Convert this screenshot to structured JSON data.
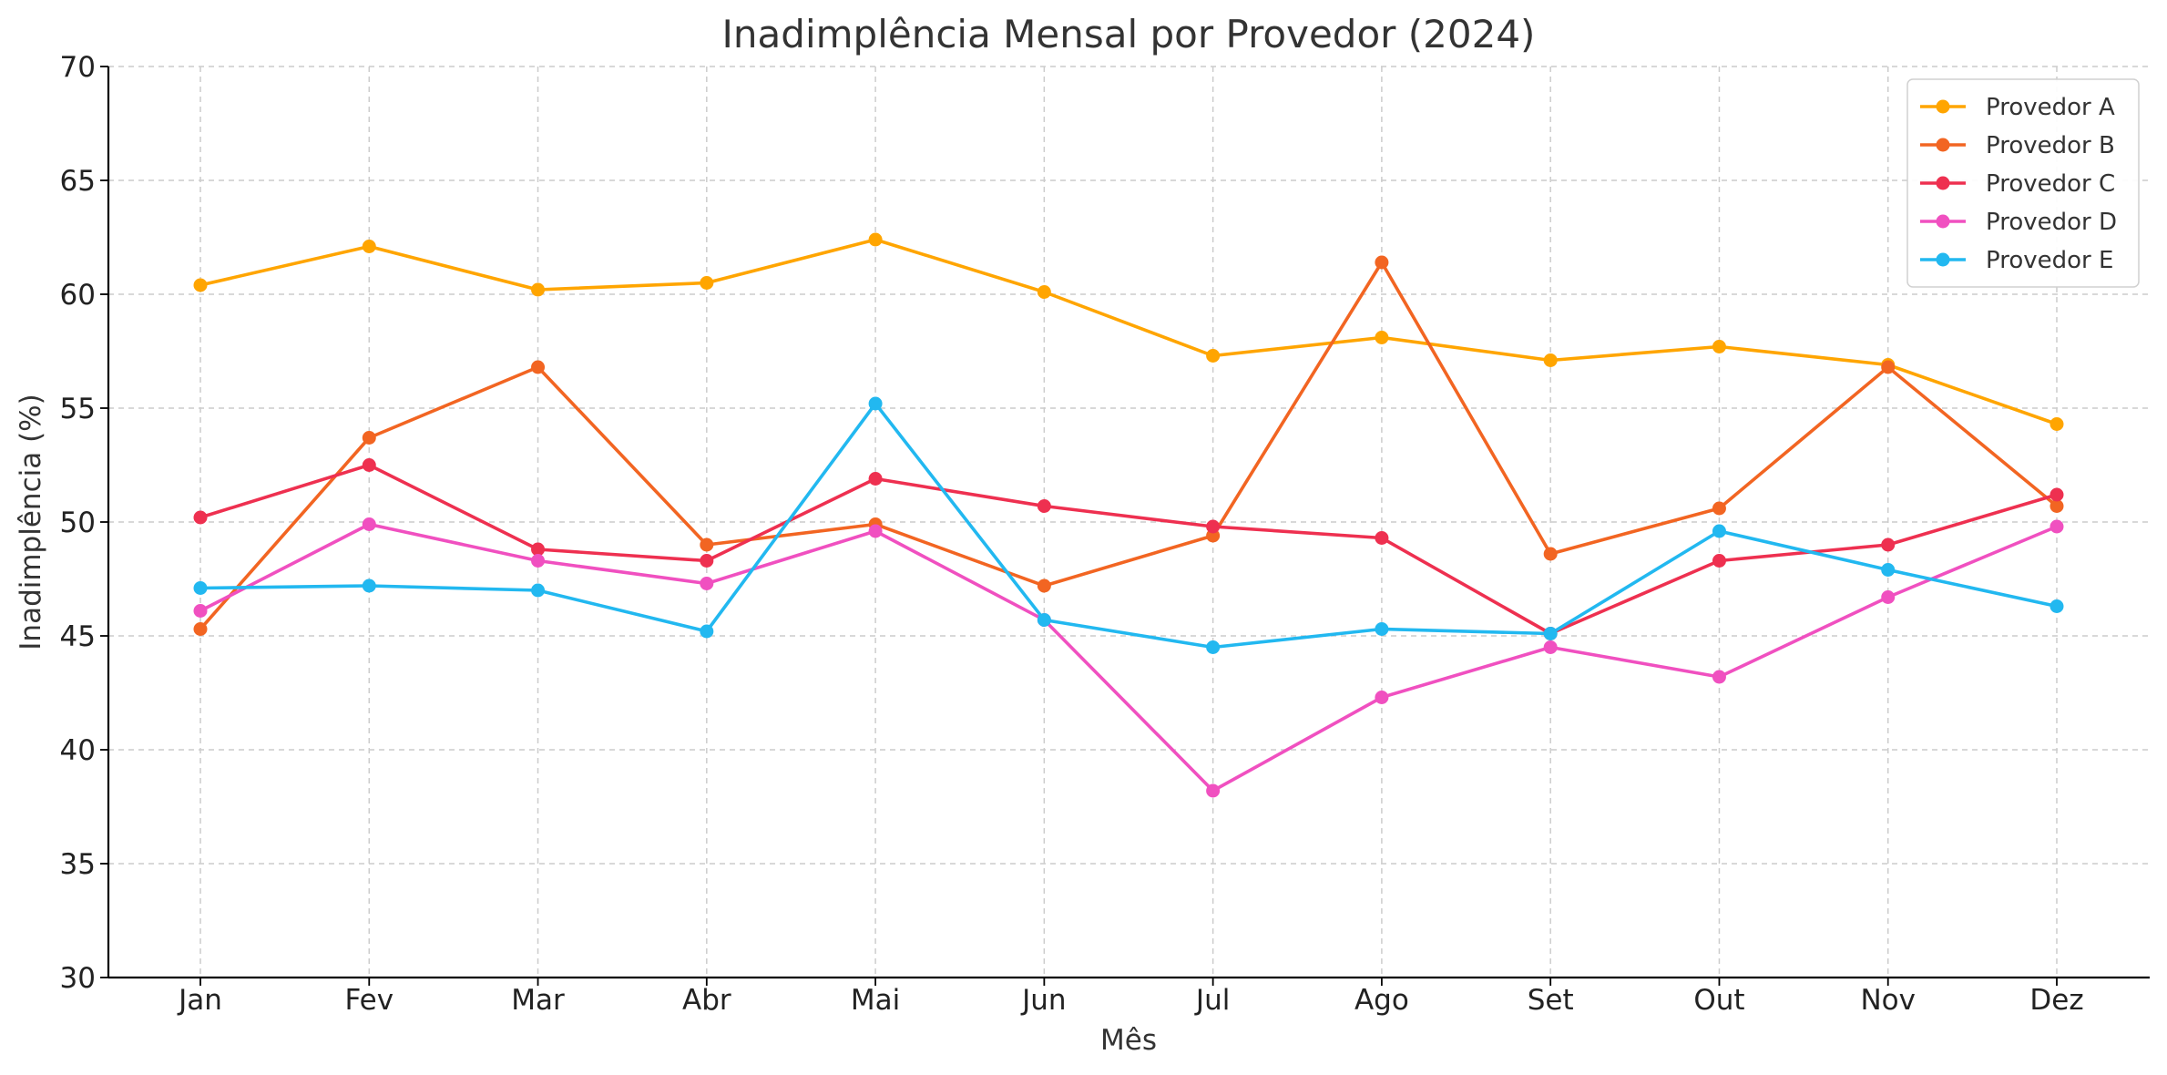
{
  "chart_data": {
    "type": "line",
    "title": "Inadimplência Mensal por Provedor (2024)",
    "xlabel": "Mês",
    "ylabel": "Inadimplência (%)",
    "ylim": [
      30,
      70
    ],
    "yticks": [
      30,
      35,
      40,
      45,
      50,
      55,
      60,
      65,
      70
    ],
    "grid": true,
    "legend_position": "top-right",
    "categories": [
      "Jan",
      "Fev",
      "Mar",
      "Abr",
      "Mai",
      "Jun",
      "Jul",
      "Ago",
      "Set",
      "Out",
      "Nov",
      "Dez"
    ],
    "series": [
      {
        "name": "Provedor A",
        "color": "#FFA500",
        "values": [
          60.4,
          62.1,
          60.2,
          60.5,
          62.4,
          60.1,
          57.3,
          58.1,
          57.1,
          57.7,
          56.9,
          54.3
        ]
      },
      {
        "name": "Provedor B",
        "color": "#F26522",
        "values": [
          45.3,
          53.7,
          56.8,
          49.0,
          49.9,
          47.2,
          49.4,
          61.4,
          48.6,
          50.6,
          56.8,
          50.7
        ]
      },
      {
        "name": "Provedor C",
        "color": "#EE3050",
        "values": [
          50.2,
          52.5,
          48.8,
          48.3,
          51.9,
          50.7,
          49.8,
          49.3,
          45.1,
          48.3,
          49.0,
          51.2
        ]
      },
      {
        "name": "Provedor D",
        "color": "#F050C0",
        "values": [
          46.1,
          49.9,
          48.3,
          47.3,
          49.6,
          45.7,
          38.2,
          42.3,
          44.5,
          43.2,
          46.7,
          49.8
        ]
      },
      {
        "name": "Provedor E",
        "color": "#22B8F0",
        "values": [
          47.1,
          47.2,
          47.0,
          45.2,
          55.2,
          45.7,
          44.5,
          45.3,
          45.1,
          49.6,
          47.9,
          46.3
        ]
      }
    ]
  }
}
